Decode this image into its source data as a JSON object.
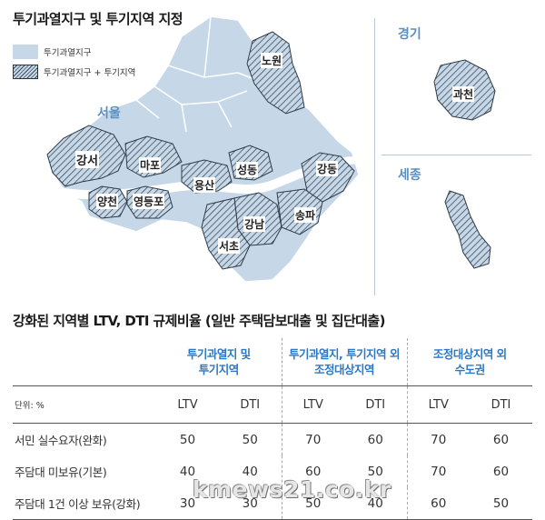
{
  "map": {
    "title": "투기과열지구 및 투기지역 지정",
    "legend": [
      {
        "label": "투기과열지구",
        "style": "plain"
      },
      {
        "label": "투기과열지구 + 투기지역",
        "style": "hatched"
      }
    ],
    "fill_color": "#c6d8e8",
    "accent_color": "#5b8fc0",
    "seoul": {
      "label": "서울",
      "districts": [
        "노원",
        "강서",
        "마포",
        "양천",
        "영등포",
        "용산",
        "성동",
        "강동",
        "강남",
        "송파",
        "서초"
      ]
    },
    "gyeonggi": {
      "label": "경기",
      "districts": [
        "과천"
      ]
    },
    "sejong": {
      "label": "세종"
    }
  },
  "table": {
    "title": "강화된 지역별 LTV, DTI 규제비율 (일반 주택담보대출 및 집단대출)",
    "unit": "단위: %",
    "groups": [
      {
        "line1": "투기과열지 및",
        "line2": "투기지역"
      },
      {
        "line1": "투기과열지, 투기지역 외",
        "line2": "조정대상지역"
      },
      {
        "line1": "조정대상지역 외",
        "line2": "수도권"
      }
    ],
    "subheaders": [
      "LTV",
      "DTI",
      "LTV",
      "DTI",
      "LTV",
      "DTI"
    ],
    "rows": [
      {
        "label": "서민 실수요자(완화)",
        "values": [
          "50",
          "50",
          "70",
          "60",
          "70",
          "60"
        ]
      },
      {
        "label": "주담대 미보유(기본)",
        "values": [
          "40",
          "40",
          "60",
          "50",
          "70",
          "60"
        ]
      },
      {
        "label": "주담대 1건 이상 보유(강화)",
        "values": [
          "30",
          "30",
          "50",
          "40",
          "60",
          "50"
        ]
      }
    ],
    "header_color": "#2c78c4"
  },
  "watermark": "kmews21.co.kr"
}
